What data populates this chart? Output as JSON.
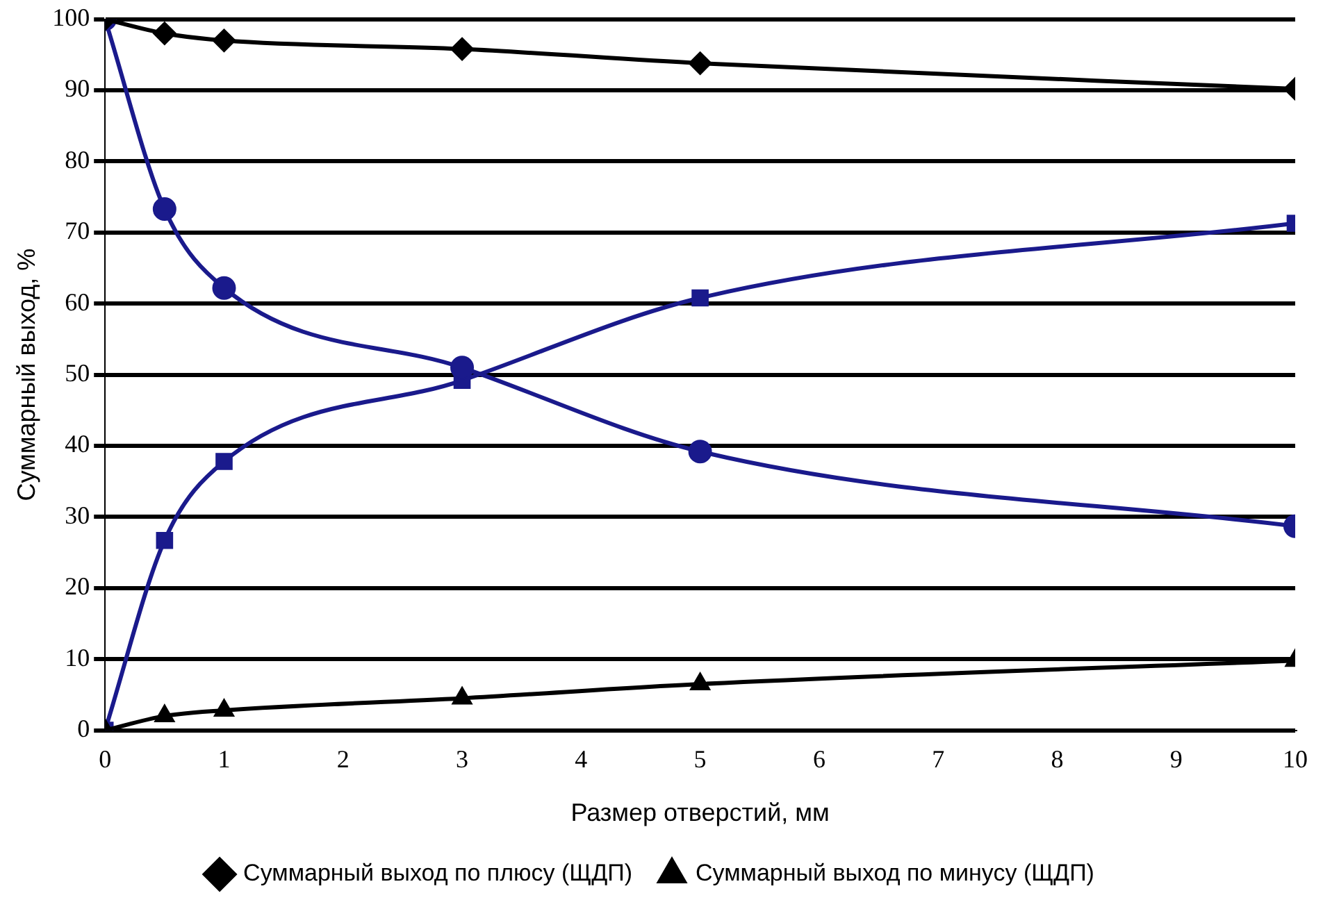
{
  "chart_data": {
    "type": "line",
    "xlabel": "Размер отверстий, мм",
    "ylabel": "Суммарный выход, %",
    "x": [
      0,
      0.5,
      1,
      3,
      5,
      10
    ],
    "series": [
      {
        "name": "Суммарный выход по плюсу (ЩДП)",
        "color": "#000000",
        "marker": "diamond",
        "values": [
          100,
          98,
          97,
          95.8,
          93.8,
          90.2
        ]
      },
      {
        "name": "Суммарный выход по минусу (ЩДП)",
        "color": "#000000",
        "marker": "triangle",
        "values": [
          0,
          2,
          2.8,
          4.5,
          6.5,
          9.8
        ]
      },
      {
        "color": "#1a1a8c",
        "marker": "circle",
        "values": [
          100,
          73.3,
          62.2,
          51,
          39.2,
          28.7
        ]
      },
      {
        "color": "#1a1a8c",
        "marker": "square",
        "values": [
          0,
          26.7,
          37.8,
          49.2,
          60.8,
          71.3
        ]
      }
    ],
    "xlim": [
      0,
      10
    ],
    "xticks": [
      0,
      1,
      2,
      3,
      4,
      5,
      6,
      7,
      8,
      9,
      10
    ],
    "ylim": [
      0,
      100
    ],
    "yticks": [
      0,
      10,
      20,
      30,
      40,
      50,
      60,
      70,
      80,
      90,
      100
    ],
    "grid": "y",
    "legend": "bottom"
  }
}
